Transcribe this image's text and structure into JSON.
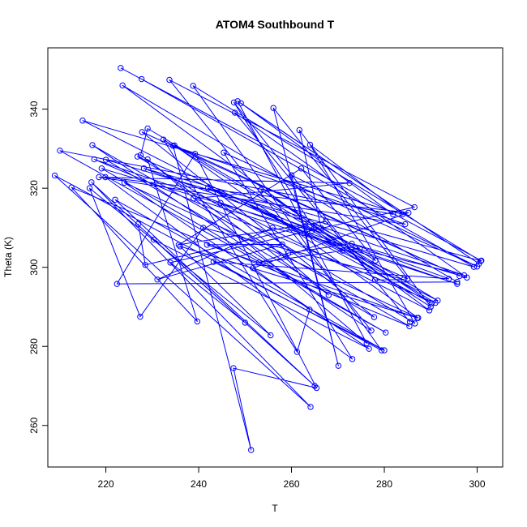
{
  "chart_data": {
    "type": "line",
    "title": "ATOM4 Southbound T",
    "xlabel": "T",
    "ylabel": "Theta (K)",
    "xlim": [
      207.5,
      305.5
    ],
    "ylim": [
      249.5,
      355.5
    ],
    "xticks": [
      220,
      240,
      260,
      280,
      300
    ],
    "yticks": [
      260,
      280,
      300,
      320,
      340
    ],
    "grid": false,
    "legend": "none",
    "series_color": "#0000ff",
    "marker": "open-circle",
    "series": [
      {
        "points": [
          [
            223.2,
            350.4
          ],
          [
            300.9,
            301.7
          ],
          [
            227.7,
            347.6
          ],
          [
            299.3,
            300.1
          ],
          [
            220.0,
            327.2
          ],
          [
            277.8,
            287.4
          ],
          [
            227.8,
            334.2
          ],
          [
            296.2,
            297.8
          ],
          [
            234.8,
            330.8
          ],
          [
            287.3,
            287.2
          ],
          [
            224.0,
            321.4
          ],
          [
            276.7,
            279.4
          ],
          [
            230.3,
            307.0
          ],
          [
            265.0,
            270.0
          ],
          [
            222.0,
            317.1
          ],
          [
            280.0,
            279.0
          ],
          [
            243.2,
            301.4
          ],
          [
            293.9,
            297.1
          ],
          [
            228.2,
            325.0
          ],
          [
            300.8,
            301.6
          ],
          [
            238.8,
            345.9
          ],
          [
            279.4,
            279.0
          ],
          [
            209.0,
            323.2
          ],
          [
            264.1,
            264.7
          ],
          [
            216.9,
            321.5
          ],
          [
            250.0,
            286.0
          ],
          [
            233.9,
            301.2
          ],
          [
            286.5,
            315.2
          ],
          [
            233.7,
            347.4
          ],
          [
            277.2,
            284.0
          ],
          [
            217.1,
            330.9
          ],
          [
            285.4,
            285.1
          ],
          [
            212.6,
            320.2
          ],
          [
            239.7,
            286.3
          ],
          [
            229.0,
            327.3
          ],
          [
            276.2,
            280.8
          ],
          [
            248.4,
            342.0
          ],
          [
            300.4,
            300.9
          ],
          [
            249.1,
            341.5
          ],
          [
            281.9,
            313.4
          ],
          [
            210.1,
            329.5
          ],
          [
            280.3,
            283.5
          ],
          [
            219.1,
            325.0
          ],
          [
            264.4,
            309.2
          ],
          [
            226.8,
            328.0
          ],
          [
            286.6,
            285.8
          ],
          [
            264.0,
            331.0
          ],
          [
            283.9,
            313.4
          ],
          [
            215.0,
            337.1
          ],
          [
            291.5,
            291.6
          ],
          [
            229.0,
            335.1
          ],
          [
            227.5,
            328.4
          ],
          [
            268.0,
            293.0
          ],
          [
            244.7,
            316.3
          ],
          [
            289.7,
            289.1
          ],
          [
            223.6,
            346.0
          ],
          [
            295.7,
            296.3
          ],
          [
            222.4,
            295.8
          ],
          [
            239.2,
            328.7
          ],
          [
            265.4,
            269.5
          ],
          [
            247.5,
            274.5
          ],
          [
            251.3,
            253.8
          ],
          [
            234.5,
            330.7
          ],
          [
            284.5,
            310.9
          ],
          [
            218.5,
            322.8
          ],
          [
            272.5,
            321.3
          ],
          [
            238.9,
            317.4
          ],
          [
            295.7,
            295.8
          ],
          [
            217.5,
            327.3
          ],
          [
            291.0,
            291.0
          ],
          [
            232.4,
            332.3
          ],
          [
            261.2,
            278.6
          ],
          [
            263.9,
            289.3
          ],
          [
            251.7,
            299.8
          ],
          [
            285.2,
            313.8
          ],
          [
            219.9,
            322.8
          ],
          [
            273.1,
            276.8
          ],
          [
            245.4,
            329.0
          ],
          [
            300.0,
            300.2
          ],
          [
            260.0,
            323.3
          ],
          [
            270.1,
            275.1
          ],
          [
            256.1,
            340.3
          ],
          [
            285.0,
            297.1
          ],
          [
            242.0,
            320.0
          ],
          [
            297.2,
            298.0
          ],
          [
            255.9,
            310.0
          ],
          [
            231.1,
            296.9
          ],
          [
            258.0,
            305.8
          ],
          [
            241.8,
            305.7
          ],
          [
            287.1,
            287.2
          ],
          [
            236.0,
            305.3
          ],
          [
            255.5,
            282.8
          ],
          [
            216.5,
            320.0
          ],
          [
            227.4,
            287.5
          ],
          [
            241.0,
            310.0
          ],
          [
            284.2,
            296.9
          ],
          [
            278.0,
            296.8
          ],
          [
            247.6,
            341.7
          ],
          [
            264.8,
            309.8
          ],
          [
            271.0,
            304.2
          ],
          [
            249.8,
            316.5
          ],
          [
            290.2,
            290.9
          ],
          [
            253.4,
            319.6
          ],
          [
            278.1,
            301.7
          ],
          [
            262.1,
            325.0
          ],
          [
            235.7,
            305.7
          ],
          [
            267.4,
            311.6
          ],
          [
            285.5,
            286.2
          ],
          [
            247.8,
            339.1
          ],
          [
            297.8,
            297.4
          ],
          [
            273.0,
            306.0
          ],
          [
            259.3,
            303.6
          ],
          [
            253.0,
            301.2
          ],
          [
            274.7,
            304.8
          ],
          [
            266.4,
            309.9
          ],
          [
            261.7,
            334.7
          ],
          [
            290.0,
            290.0
          ],
          [
            263.0,
            310.4
          ],
          [
            228.5,
            300.6
          ],
          [
            227.0,
            311.0
          ]
        ]
      }
    ]
  }
}
